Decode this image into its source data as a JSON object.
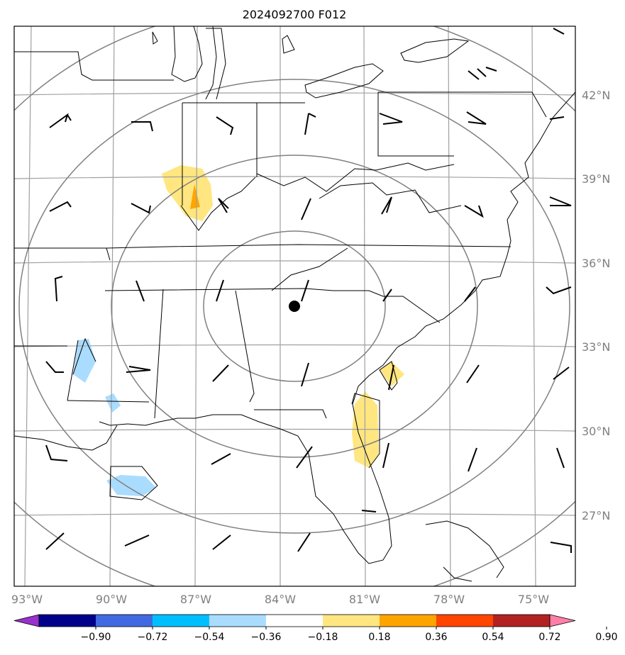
{
  "title": "2024092700 F012",
  "longitude_labels": [
    "93°W",
    "90°W",
    "87°W",
    "84°W",
    "81°W",
    "78°W",
    "75°W"
  ],
  "latitude_labels": [
    "42°N",
    "39°N",
    "36°N",
    "33°N",
    "30°N",
    "27°N"
  ],
  "colorbar": {
    "ticks": [
      "−0.90",
      "−0.72",
      "−0.54",
      "−0.36",
      "−0.18",
      "0.18",
      "0.36",
      "0.54",
      "0.72",
      "0.90"
    ],
    "colors": [
      "#9932cc",
      "#00008b",
      "#4169e1",
      "#00bfff",
      "#aadcff",
      "#ffffff",
      "#ffe680",
      "#ffa500",
      "#ff4500",
      "#b22222",
      "#ff7fa8"
    ]
  },
  "colors": {
    "grid": "#a0a0a0",
    "range_rings": "#808080",
    "borders": "#000000"
  },
  "center_marker": "black-dot"
}
